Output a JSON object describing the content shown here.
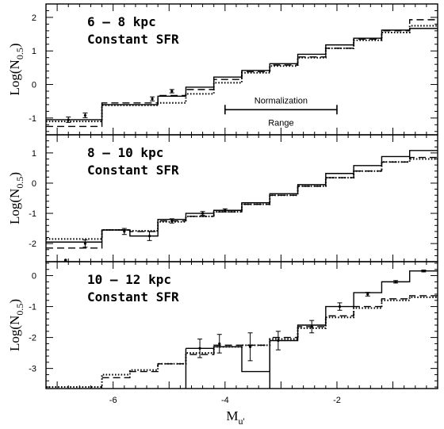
{
  "chart_data": [
    {
      "type": "line",
      "title": "",
      "label_line1": "6 – 8 kpc",
      "label_line2": "Constant SFR",
      "ylabel_main": "Log(N",
      "ylabel_sub": "0.5",
      "ylabel_end": ")",
      "xlim": [
        -7.2,
        -0.2
      ],
      "ylim": [
        -1.5,
        2.4
      ],
      "yticks": [
        -1,
        0,
        1,
        2
      ],
      "xticks": [
        -6,
        -4,
        -2
      ],
      "bin_edges": [
        -7.2,
        -6.2,
        -5.2,
        -4.7,
        -4.2,
        -3.7,
        -3.2,
        -2.7,
        -2.2,
        -1.7,
        -1.2,
        -0.7,
        -0.2
      ],
      "series": [
        {
          "style": "solid",
          "values": [
            -1.05,
            -0.6,
            -0.35,
            -0.08,
            0.22,
            0.42,
            0.62,
            0.9,
            1.18,
            1.38,
            1.62,
            1.67
          ]
        },
        {
          "style": "dashed",
          "values": [
            -1.25,
            -0.55,
            -0.33,
            -0.15,
            0.15,
            0.38,
            0.58,
            0.82,
            1.08,
            1.35,
            1.6,
            1.93
          ]
        },
        {
          "style": "dotted",
          "values": [
            -1.1,
            -0.62,
            -0.55,
            -0.28,
            0.05,
            0.35,
            0.55,
            0.8,
            1.08,
            1.32,
            1.55,
            1.75
          ]
        }
      ],
      "errorbars": [
        {
          "x": -6.8,
          "y": -1.05,
          "err": 0.08
        },
        {
          "x": -6.5,
          "y": -0.92,
          "err": 0.07
        },
        {
          "x": -5.3,
          "y": -0.43,
          "err": 0.06
        },
        {
          "x": -4.95,
          "y": -0.2,
          "err": 0.05
        }
      ],
      "annotation": {
        "text_top": "Normalization",
        "text_bottom": "Range",
        "x_range": [
          -4.0,
          -2.0
        ],
        "y": -0.75
      }
    },
    {
      "type": "line",
      "title": "",
      "label_line1": "8 – 10 kpc",
      "label_line2": "Constant SFR",
      "ylabel_main": "Log(N",
      "ylabel_sub": "0.5",
      "ylabel_end": ")",
      "xlim": [
        -7.2,
        -0.2
      ],
      "ylim": [
        -2.6,
        1.6
      ],
      "yticks": [
        -2,
        -1,
        0,
        1
      ],
      "xticks": [
        -6,
        -4,
        -2
      ],
      "bin_edges": [
        -7.2,
        -6.2,
        -5.7,
        -5.2,
        -4.7,
        -4.2,
        -3.7,
        -3.2,
        -2.7,
        -2.2,
        -1.7,
        -1.2,
        -0.7,
        -0.2
      ],
      "series": [
        {
          "style": "solid",
          "values": [
            -1.95,
            -1.55,
            -1.75,
            -1.2,
            -1.0,
            -0.9,
            -0.65,
            -0.35,
            -0.05,
            0.32,
            0.58,
            0.88,
            1.08
          ]
        },
        {
          "style": "dashed",
          "values": [
            -2.15,
            -1.55,
            -1.6,
            -1.25,
            -1.1,
            -0.95,
            -0.7,
            -0.4,
            -0.1,
            0.18,
            0.4,
            0.7,
            0.85
          ]
        },
        {
          "style": "dotted",
          "values": [
            -1.85,
            -1.55,
            -1.58,
            -1.28,
            -1.1,
            -0.95,
            -0.7,
            -0.4,
            -0.1,
            0.18,
            0.4,
            0.7,
            0.8
          ]
        }
      ],
      "errorbars": [
        {
          "x": -6.5,
          "y": -2.0,
          "err": 0.12
        },
        {
          "x": -5.8,
          "y": -1.6,
          "err": 0.1
        },
        {
          "x": -5.35,
          "y": -1.75,
          "err": 0.15
        },
        {
          "x": -4.95,
          "y": -1.25,
          "err": 0.07
        },
        {
          "x": -4.4,
          "y": -1.0,
          "err": 0.06
        },
        {
          "x": -4.0,
          "y": -0.9,
          "err": 0.05
        }
      ],
      "points": [
        {
          "x": -6.85,
          "y": -2.55
        }
      ]
    },
    {
      "type": "line",
      "title": "",
      "label_line1": "10 – 12 kpc",
      "label_line2": "Constant SFR",
      "ylabel_main": "Log(N",
      "ylabel_sub": "0.5",
      "ylabel_end": ")",
      "xlabel_main": "M",
      "xlabel_sub": "u'",
      "xlim": [
        -7.2,
        -0.2
      ],
      "ylim": [
        -3.65,
        0.45
      ],
      "yticks": [
        -3,
        -2,
        -1,
        0
      ],
      "xticks": [
        -6,
        -4,
        -2
      ],
      "xticklabels": [
        "-6",
        "-4",
        "-2"
      ],
      "bin_edges": [
        -7.2,
        -6.2,
        -5.7,
        -5.2,
        -4.7,
        -4.2,
        -3.7,
        -3.2,
        -2.7,
        -2.2,
        -1.7,
        -1.2,
        -0.7,
        -0.2
      ],
      "series": [
        {
          "style": "solid",
          "values": [
            null,
            null,
            null,
            null,
            -2.35,
            -2.3,
            -3.1,
            -2.1,
            -1.6,
            -1.0,
            -0.55,
            -0.2,
            0.15
          ]
        },
        {
          "style": "dashed",
          "values": [
            null,
            -3.3,
            -3.1,
            -2.85,
            -2.55,
            -2.25,
            -2.25,
            -2.0,
            -1.65,
            -1.3,
            -1.0,
            -0.75,
            -0.65
          ]
        },
        {
          "style": "dotted",
          "values": [
            -3.6,
            -3.2,
            -3.05,
            -2.85,
            -2.5,
            -2.3,
            -2.25,
            -2.05,
            -1.7,
            -1.35,
            -1.05,
            -0.8,
            -0.7
          ]
        }
      ],
      "errorbars": [
        {
          "x": -4.45,
          "y": -2.35,
          "err": 0.3
        },
        {
          "x": -4.1,
          "y": -2.2,
          "err": 0.3
        },
        {
          "x": -3.55,
          "y": -2.3,
          "err": 0.45
        },
        {
          "x": -3.05,
          "y": -2.1,
          "err": 0.3
        },
        {
          "x": -2.45,
          "y": -1.65,
          "err": 0.2
        },
        {
          "x": -1.95,
          "y": -1.0,
          "err": 0.12
        },
        {
          "x": -1.45,
          "y": -0.6,
          "err": 0.06
        },
        {
          "x": -0.95,
          "y": -0.2,
          "err": 0.04
        },
        {
          "x": -0.45,
          "y": 0.15,
          "err": 0.03
        }
      ]
    }
  ]
}
